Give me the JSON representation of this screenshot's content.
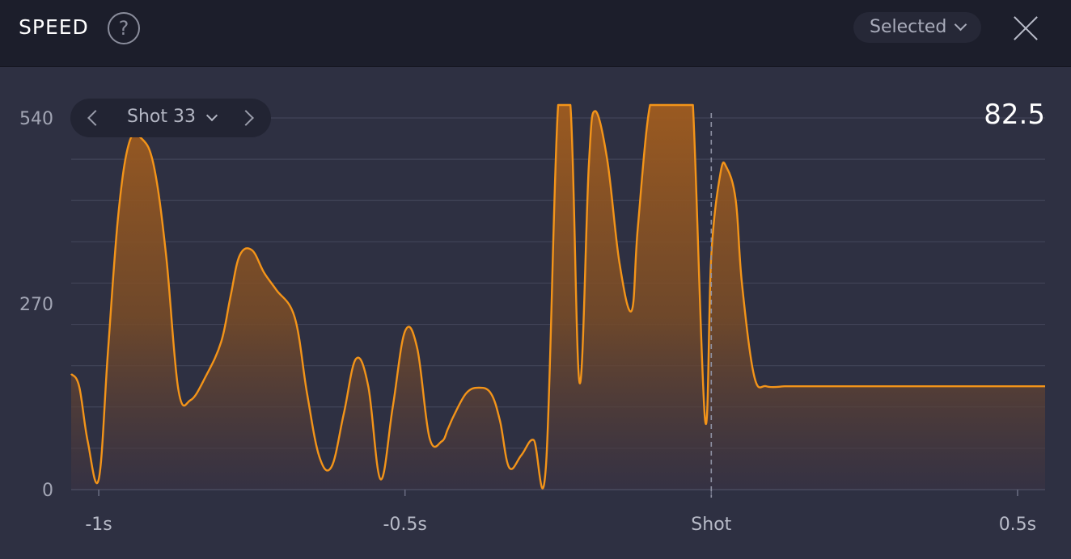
{
  "header": {
    "title": "SPEED",
    "help_icon": "question-circle-icon",
    "selector_label": "Selected",
    "close_icon": "close-icon"
  },
  "shot_selector": {
    "label": "Shot 33",
    "prev_icon": "chevron-left-icon",
    "next_icon": "chevron-right-icon"
  },
  "readout": "82.5",
  "colors": {
    "line": "#f39419",
    "fill_top": "#a05c1f",
    "background": "#2e3042",
    "header": "#1c1e2b",
    "grid": "#474a5e"
  },
  "chart_data": {
    "type": "area",
    "title": "",
    "xlabel": "",
    "ylabel": "",
    "ylim": [
      0,
      540
    ],
    "xlim": [
      -1.045,
      0.545
    ],
    "yticks": [
      0,
      270,
      540
    ],
    "ytick_labels": [
      "0",
      "270",
      "540"
    ],
    "xticks": [
      -1,
      -0.5,
      0,
      0.5
    ],
    "xtick_labels": [
      "-1s",
      "-0.5s",
      "Shot",
      "0.5s"
    ],
    "grid": true,
    "marker_line": {
      "x": 0,
      "label": "Shot"
    },
    "series": [
      {
        "x": [
          -1.045,
          -1.032,
          -1.018,
          -1.0,
          -0.985,
          -0.968,
          -0.95,
          -0.93,
          -0.91,
          -0.89,
          -0.87,
          -0.85,
          -0.825,
          -0.8,
          -0.785,
          -0.77,
          -0.75,
          -0.73,
          -0.71,
          -0.68,
          -0.66,
          -0.64,
          -0.62,
          -0.6,
          -0.58,
          -0.56,
          -0.54,
          -0.52,
          -0.5,
          -0.48,
          -0.46,
          -0.44,
          -0.43,
          -0.42,
          -0.4,
          -0.38,
          -0.36,
          -0.345,
          -0.33,
          -0.31,
          -0.29,
          -0.27,
          -0.25,
          -0.23,
          -0.215,
          -0.2,
          -0.19,
          -0.17,
          -0.15,
          -0.13,
          -0.12,
          -0.1,
          -0.08,
          -0.06,
          -0.04,
          -0.03,
          -0.01,
          0.0,
          0.015,
          0.025,
          0.04,
          0.05,
          0.07,
          0.09,
          0.12,
          0.13,
          0.145,
          0.16,
          0.18,
          0.2,
          0.22,
          0.24,
          0.25,
          0.27,
          0.28,
          0.3,
          0.32,
          0.33,
          0.35,
          0.37,
          0.38,
          0.4,
          0.42,
          0.44,
          0.46,
          0.48,
          0.5,
          0.52,
          0.545
        ],
        "values": [
          168,
          150,
          70,
          15,
          200,
          400,
          505,
          510,
          470,
          340,
          145,
          130,
          165,
          215,
          280,
          340,
          348,
          315,
          290,
          250,
          140,
          48,
          33,
          110,
          190,
          150,
          15,
          120,
          230,
          205,
          75,
          70,
          88,
          108,
          140,
          148,
          140,
          100,
          32,
          50,
          72,
          33,
          560,
          560,
          155,
          470,
          550,
          480,
          330,
          260,
          380,
          560,
          560,
          560,
          560,
          560,
          100,
          340,
          460,
          468,
          420,
          300,
          165,
          150,
          150,
          150,
          150,
          150,
          150,
          150,
          150,
          150,
          150,
          150,
          150,
          150,
          150,
          150,
          150,
          150,
          150,
          150,
          150,
          150,
          150,
          150,
          150,
          150,
          150
        ]
      }
    ]
  }
}
